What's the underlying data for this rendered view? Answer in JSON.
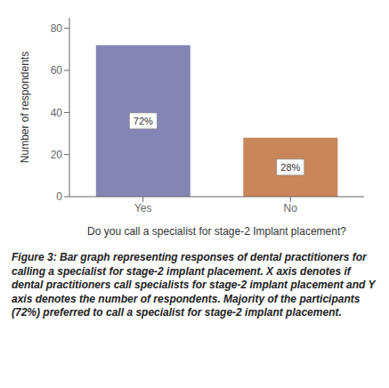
{
  "chart_data": {
    "type": "bar",
    "categories": [
      "Yes",
      "No"
    ],
    "values": [
      72,
      28
    ],
    "value_labels": [
      "72%",
      "28%"
    ],
    "data_labels": true,
    "colors": [
      "#8585b5",
      "#c8865a"
    ],
    "ylabel": "Number of respondents",
    "xlabel": "Do you call a specialist for stage-2 Implant placement?",
    "ylim": [
      0,
      85
    ],
    "yticks": [
      0,
      20,
      40,
      60,
      80
    ],
    "grid": false,
    "caption": "Figure 3: Bar graph representing responses of dental practitioners for calling a specialist for stage-2 implant placement. X axis denotes if dental practitioners call specialists for stage-2 implant placement and Y axis denotes the number of respondents. Majority of the participants (72%) preferred to call a specialist for stage-2 implant placement."
  }
}
